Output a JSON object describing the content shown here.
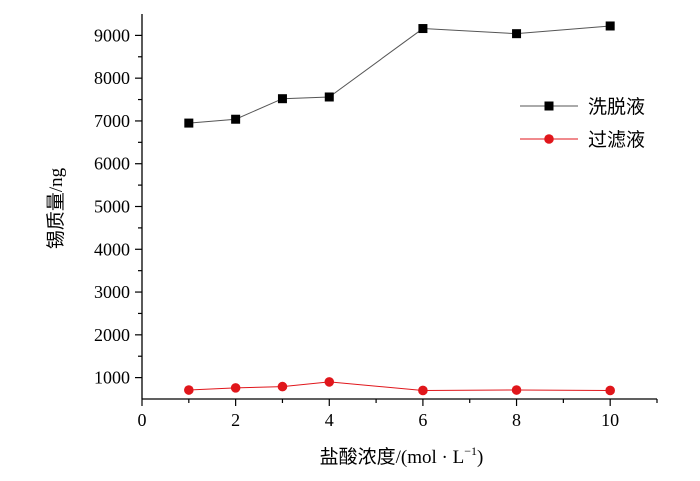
{
  "chart_data": {
    "type": "line",
    "xlabel": "盐酸浓度/(mol · L",
    "xlabel_sup": "−1",
    "xlabel_close": ")",
    "ylabel": "锡质量/ng",
    "xlim": [
      0,
      11
    ],
    "ylim": [
      500,
      9500
    ],
    "x_ticks": [
      "0",
      "2",
      "4",
      "6",
      "8",
      "10"
    ],
    "y_ticks": [
      "1000",
      "2000",
      "3000",
      "4000",
      "5000",
      "6000",
      "7000",
      "8000",
      "9000"
    ],
    "legend_position": "right",
    "grid": false,
    "series": [
      {
        "name": "洗脱液",
        "color": "#000000",
        "line_color": "#555555",
        "marker": "square",
        "x": [
          1,
          2,
          3,
          4,
          6,
          8,
          10
        ],
        "y": [
          6950,
          7040,
          7520,
          7560,
          9160,
          9040,
          9220
        ]
      },
      {
        "name": "过滤液",
        "color": "#e0161b",
        "line_color": "#e0161b",
        "marker": "circle",
        "x": [
          1,
          2,
          3,
          4,
          6,
          8,
          10
        ],
        "y": [
          710,
          760,
          790,
          900,
          700,
          710,
          700
        ]
      }
    ]
  }
}
